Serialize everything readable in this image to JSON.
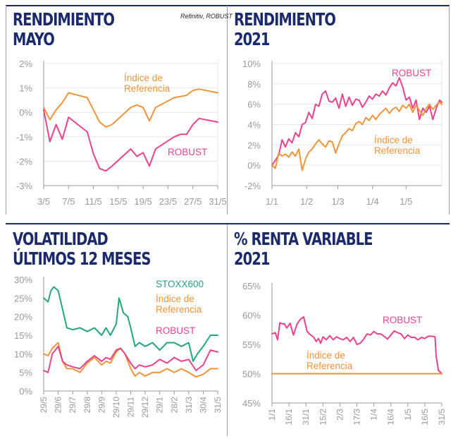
{
  "source": "Refinitiv, ROBUST",
  "panels": [
    {
      "id": "p1",
      "title_line1": "RENDIMIENTO",
      "title_line2": "MAYO"
    },
    {
      "id": "p2",
      "title_line1": "RENDIMIENTO",
      "title_line2": "2021"
    },
    {
      "id": "p3",
      "title_line1": "VOLATILIDAD",
      "title_line2": "ÚLTIMOS 12 MESES"
    },
    {
      "id": "p4",
      "title_line1": "% RENTA VARIABLE",
      "title_line2": "2021"
    }
  ],
  "colors": {
    "robust": "#e8428f",
    "indice": "#f0943a",
    "stoxx": "#22a779",
    "axis": "#9a9a9a",
    "grid": "#e6e6e6",
    "title": "#1a2a6c"
  },
  "chart_data": [
    {
      "id": "p1",
      "type": "line",
      "title": "RENDIMIENTO MAYO",
      "x_tick_labels": [
        "3/5",
        "7/5",
        "11/5",
        "15/5",
        "19/5",
        "23/5",
        "27/5",
        "31/5"
      ],
      "y_tick_labels": [
        "2%",
        "1%",
        "0%",
        "-1%",
        "-2%",
        "-3%"
      ],
      "ylim": [
        -3,
        2
      ],
      "xlim": [
        3,
        31
      ],
      "x_ticks": [
        3,
        7,
        11,
        15,
        19,
        23,
        27,
        31
      ],
      "y_ticks": [
        2,
        1,
        0,
        -1,
        -2,
        -3
      ],
      "series": [
        {
          "name": "Índice de Referencia",
          "label_lines": [
            "Índice de",
            "Referencia"
          ],
          "color": "#f0943a",
          "x": [
            3,
            4,
            5,
            6,
            7,
            10,
            11,
            12,
            13,
            14,
            17,
            18,
            19,
            20,
            21,
            24,
            25,
            26,
            27,
            28,
            31
          ],
          "y": [
            0.2,
            -0.3,
            0.1,
            0.4,
            0.8,
            0.6,
            0.1,
            -0.4,
            -0.6,
            -0.5,
            0.2,
            0.3,
            0.2,
            -0.35,
            0.2,
            0.6,
            0.65,
            0.7,
            0.9,
            0.95,
            0.8
          ]
        },
        {
          "name": "ROBUST",
          "label_lines": [
            "ROBUST"
          ],
          "color": "#e8428f",
          "x": [
            3,
            4,
            5,
            6,
            7,
            10,
            11,
            12,
            13,
            14,
            17,
            18,
            19,
            20,
            21,
            24,
            25,
            26,
            27,
            28,
            31
          ],
          "y": [
            0.1,
            -1.2,
            -0.5,
            -1.1,
            -0.2,
            -0.8,
            -1.7,
            -2.3,
            -2.4,
            -2.2,
            -1.5,
            -1.8,
            -1.65,
            -2.2,
            -1.5,
            -1.0,
            -0.9,
            -0.9,
            -0.5,
            -0.25,
            -0.4
          ]
        }
      ]
    },
    {
      "id": "p2",
      "type": "line",
      "title": "RENDIMIENTO 2021",
      "x_tick_labels": [
        "1/1",
        "1/2",
        "1/3",
        "1/4",
        "1/5"
      ],
      "y_tick_labels": [
        "10%",
        "8%",
        "6%",
        "4%",
        "2%",
        "0%",
        "-2%"
      ],
      "ylim": [
        -2,
        10
      ],
      "xlim": [
        0,
        152
      ],
      "x_ticks": [
        0,
        31,
        59,
        90,
        120
      ],
      "y_ticks": [
        10,
        8,
        6,
        4,
        2,
        0,
        -2
      ],
      "series": [
        {
          "name": "ROBUST",
          "label_lines": [
            "ROBUST"
          ],
          "color": "#e8428f",
          "x": [
            0,
            3,
            6,
            9,
            12,
            15,
            18,
            21,
            24,
            27,
            30,
            33,
            36,
            39,
            42,
            45,
            48,
            51,
            54,
            57,
            60,
            63,
            66,
            69,
            72,
            75,
            78,
            81,
            84,
            87,
            90,
            93,
            96,
            99,
            102,
            105,
            108,
            111,
            114,
            117,
            120,
            123,
            126,
            129,
            132,
            135,
            138,
            141,
            144,
            147,
            150,
            152
          ],
          "y": [
            0,
            0.5,
            1,
            2.5,
            1.8,
            2.6,
            2.2,
            3.2,
            2.8,
            4,
            4.2,
            5.2,
            4.6,
            6,
            5.8,
            7,
            7.3,
            6.3,
            6.2,
            6.6,
            5.6,
            7,
            5.8,
            6.7,
            5.9,
            6.5,
            6.4,
            5.7,
            6.2,
            6.8,
            6.5,
            7,
            6.8,
            7.3,
            6.9,
            7.6,
            8.1,
            7.8,
            8.6,
            7.7,
            6.4,
            6.7,
            5.6,
            6.4,
            4.5,
            5.6,
            5.2,
            5.8,
            4.5,
            5.6,
            6.4,
            6.2
          ]
        },
        {
          "name": "Índice de Referencia",
          "label_lines": [
            "Índice de",
            "Referencia"
          ],
          "color": "#f0943a",
          "x": [
            0,
            3,
            6,
            9,
            12,
            15,
            18,
            21,
            24,
            27,
            30,
            33,
            36,
            39,
            42,
            45,
            48,
            51,
            54,
            57,
            60,
            63,
            66,
            69,
            72,
            75,
            78,
            81,
            84,
            87,
            90,
            93,
            96,
            99,
            102,
            105,
            108,
            111,
            114,
            117,
            120,
            123,
            126,
            129,
            132,
            135,
            138,
            141,
            144,
            147,
            150,
            152
          ],
          "y": [
            0,
            -0.3,
            1.2,
            0.9,
            1.1,
            0.8,
            1.3,
            0.9,
            1.6,
            -0.5,
            0.6,
            1.3,
            1.6,
            2.1,
            2.5,
            2.1,
            1.8,
            2.4,
            2.3,
            1.2,
            2.1,
            2.9,
            3.2,
            3.6,
            3.4,
            4.1,
            4.3,
            4.0,
            4.7,
            4.4,
            4.9,
            4.5,
            5.0,
            5.3,
            5.6,
            5.1,
            5.5,
            5.7,
            5.3,
            5.9,
            5.6,
            6.0,
            5.2,
            5.9,
            5.4,
            4.9,
            5.6,
            6.0,
            5.5,
            5.9,
            6.2,
            6.0
          ]
        }
      ]
    },
    {
      "id": "p3",
      "type": "line",
      "title": "VOLATILIDAD ÚLTIMOS 12 MESES",
      "x_tick_labels": [
        "29/5",
        "29/6",
        "29/7",
        "29/8",
        "29/9",
        "29/10",
        "29/11",
        "29/12",
        "29/1",
        "28/2",
        "31/3",
        "30/4",
        "31/5"
      ],
      "y_tick_labels": [
        "30%",
        "25%",
        "20%",
        "15%",
        "10%",
        "5%",
        "0%"
      ],
      "ylim": [
        0,
        30
      ],
      "xlim": [
        0,
        12
      ],
      "x_ticks": [
        0,
        1,
        2,
        3,
        4,
        5,
        6,
        7,
        8,
        9,
        10,
        11,
        12
      ],
      "y_ticks": [
        30,
        25,
        20,
        15,
        10,
        5,
        0
      ],
      "series": [
        {
          "name": "STOXX600",
          "label_lines": [
            "STOXX600"
          ],
          "color": "#22a779",
          "x": [
            0,
            0.3,
            0.5,
            0.7,
            1.0,
            1.3,
            1.6,
            2.0,
            2.5,
            3.0,
            3.5,
            4.0,
            4.3,
            4.6,
            5.0,
            5.2,
            5.5,
            5.8,
            6.0,
            6.3,
            6.6,
            7.0,
            7.5,
            8.0,
            8.5,
            9.0,
            9.5,
            10.0,
            10.3,
            10.6,
            11.0,
            11.5,
            12.0
          ],
          "y": [
            25,
            24,
            27,
            28,
            27,
            22,
            17,
            16.5,
            17,
            16,
            17,
            15,
            17,
            15,
            18,
            25,
            21,
            20,
            17,
            12,
            13,
            12,
            13,
            11,
            13,
            13,
            12,
            13,
            8,
            10,
            12,
            15,
            15
          ]
        },
        {
          "name": "Índice de Referencia",
          "label_lines": [
            "Índice de",
            "Referencia"
          ],
          "color": "#f0943a",
          "x": [
            0,
            0.3,
            0.6,
            1.0,
            1.3,
            1.6,
            2.0,
            2.5,
            3.0,
            3.5,
            4.0,
            4.3,
            4.6,
            5.0,
            5.3,
            5.6,
            6.0,
            6.3,
            6.6,
            7.0,
            7.5,
            8.0,
            8.5,
            9.0,
            9.5,
            10.0,
            10.5,
            11.0,
            11.5,
            12.0
          ],
          "y": [
            10,
            9.5,
            11.5,
            13,
            8,
            6,
            6,
            5,
            7.5,
            9,
            7,
            8,
            7.5,
            10.5,
            11.5,
            10,
            6,
            4,
            5,
            4,
            5,
            5,
            6,
            5,
            6,
            5,
            3.8,
            4.5,
            6,
            6
          ]
        },
        {
          "name": "ROBUST",
          "label_lines": [
            "ROBUST"
          ],
          "color": "#e8428f",
          "x": [
            0,
            0.3,
            0.6,
            1.0,
            1.3,
            1.6,
            2.0,
            2.5,
            3.0,
            3.5,
            4.0,
            4.3,
            4.6,
            5.0,
            5.3,
            5.6,
            6.0,
            6.3,
            6.6,
            7.0,
            7.5,
            8.0,
            8.5,
            9.0,
            9.5,
            10.0,
            10.5,
            11.0,
            11.5,
            12.0
          ],
          "y": [
            5.5,
            5,
            10,
            12,
            8,
            7,
            6.5,
            6,
            8,
            9.5,
            8,
            9,
            8.5,
            11,
            11.5,
            10,
            7.5,
            6,
            7,
            6.5,
            7,
            8.5,
            7.5,
            9,
            8,
            8.5,
            5.5,
            7,
            11,
            10.5
          ]
        }
      ]
    },
    {
      "id": "p4",
      "type": "line",
      "title": "% RENTA VARIABLE 2021",
      "x_tick_labels": [
        "1/1",
        "16/1",
        "31/1",
        "15/2",
        "2/3",
        "17/3",
        "1/4",
        "16/4",
        "1/5",
        "16/5",
        "31/5"
      ],
      "y_tick_labels": [
        "65%",
        "60%",
        "55%",
        "50%",
        "45%"
      ],
      "ylim": [
        45,
        65
      ],
      "xlim": [
        0,
        150
      ],
      "x_ticks": [
        0,
        15,
        30,
        45,
        60,
        75,
        90,
        105,
        120,
        135,
        150
      ],
      "y_ticks": [
        65,
        60,
        55,
        50,
        45
      ],
      "series": [
        {
          "name": "ROBUST",
          "label_lines": [
            "ROBUST"
          ],
          "color": "#e8428f",
          "x": [
            0,
            3,
            5,
            7,
            9,
            11,
            13,
            16,
            19,
            22,
            25,
            28,
            31,
            33,
            35,
            37,
            39,
            41,
            43,
            45,
            48,
            51,
            54,
            57,
            60,
            63,
            66,
            69,
            72,
            75,
            78,
            81,
            84,
            87,
            90,
            93,
            96,
            99,
            102,
            105,
            108,
            111,
            114,
            117,
            120,
            123,
            126,
            129,
            132,
            135,
            138,
            141,
            144,
            145,
            147,
            150
          ],
          "y": [
            56.8,
            57,
            55.8,
            58.7,
            58.5,
            58.5,
            57.8,
            58.6,
            56.6,
            58.4,
            59.3,
            59.7,
            57.2,
            56.8,
            56.5,
            56.2,
            55.5,
            56,
            55.2,
            56.3,
            55.8,
            56.5,
            55.8,
            56.3,
            56.0,
            55.8,
            56.2,
            55.5,
            56.2,
            55.0,
            55.2,
            55.9,
            56.8,
            56.6,
            57.2,
            56.8,
            56.8,
            56.4,
            55.9,
            56.6,
            57.3,
            57.0,
            56.8,
            56.0,
            56.6,
            56.2,
            56.2,
            55.8,
            56.2,
            56.0,
            56.4,
            56.4,
            56.3,
            53.0,
            50.6,
            50.0
          ]
        },
        {
          "name": "Índice de Referencia",
          "label_lines": [
            "Índice de",
            "Referencia"
          ],
          "color": "#f0943a",
          "x": [
            0,
            150
          ],
          "y": [
            50,
            50
          ]
        }
      ]
    }
  ]
}
